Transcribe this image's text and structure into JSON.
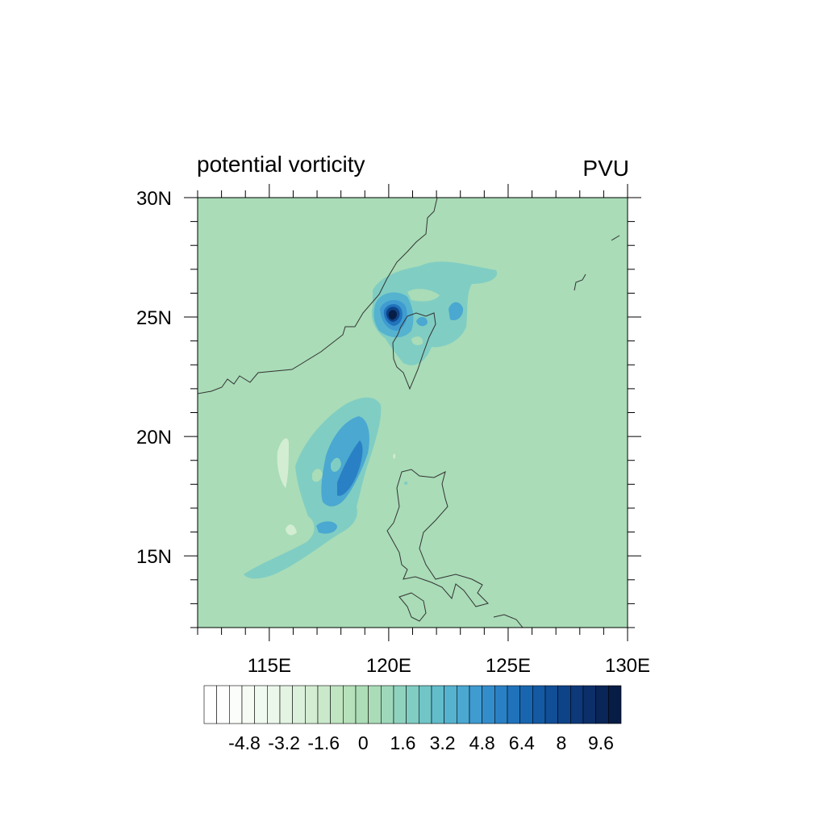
{
  "map": {
    "title_left": "potential vorticity",
    "title_right": "PVU",
    "lon_range": [
      112,
      130
    ],
    "lat_range": [
      12,
      30
    ],
    "background_value_color": "#a9dcb7",
    "lon_ticks": [
      {
        "value": 115,
        "label": "115E"
      },
      {
        "value": 120,
        "label": "120E"
      },
      {
        "value": 125,
        "label": "125E"
      },
      {
        "value": 130,
        "label": "130E"
      }
    ],
    "lat_ticks": [
      {
        "value": 30,
        "label": "30N"
      },
      {
        "value": 25,
        "label": "25N"
      },
      {
        "value": 20,
        "label": "20N"
      },
      {
        "value": 15,
        "label": "15N"
      }
    ],
    "colorbar": {
      "colors": [
        "#ffffff",
        "#fdfefd",
        "#fafdf9",
        "#f6fcf4",
        "#f1faf0",
        "#ebf7ea",
        "#e4f4e3",
        "#dcf1db",
        "#d3edd2",
        "#cae9ca",
        "#c0e5c1",
        "#b6e1ba",
        "#acddb7",
        "#a9dcb7",
        "#9ed8bb",
        "#8fd3bf",
        "#80cdc3",
        "#71c5c7",
        "#62bdcb",
        "#55b3cf",
        "#4aa8d1",
        "#3f9bd0",
        "#348dcb",
        "#2a80c4",
        "#2073bb",
        "#1866b0",
        "#135aa3",
        "#104e96",
        "#0e4388",
        "#0d397a",
        "#0c2f6a",
        "#0a2557",
        "#081d45"
      ],
      "labels": [
        "-4.8",
        "-3.2",
        "-1.6",
        "0",
        "1.6",
        "3.2",
        "4.8",
        "6.4",
        "8",
        "9.6"
      ]
    }
  },
  "chart_data": {
    "type": "heatmap",
    "title": "potential vorticity",
    "units": "PVU",
    "x_axis": {
      "name": "longitude",
      "range": [
        112,
        130
      ],
      "ticks": [
        "115E",
        "120E",
        "125E",
        "130E"
      ]
    },
    "y_axis": {
      "name": "latitude",
      "range": [
        12,
        30
      ],
      "ticks": [
        "15N",
        "20N",
        "25N",
        "30N"
      ]
    },
    "levels": [
      -4.8,
      -3.2,
      -1.6,
      0,
      1.6,
      3.2,
      4.8,
      6.4,
      8,
      9.6
    ],
    "features": [
      {
        "lon": 120.2,
        "lat": 25.1,
        "value": 10.0
      },
      {
        "lon": 122.6,
        "lat": 25.2,
        "value": 3.2
      },
      {
        "lon": 118.5,
        "lat": 18.6,
        "value": 5.0
      },
      {
        "lon": 117.5,
        "lat": 16.6,
        "value": 3.5
      },
      {
        "lon": 115.4,
        "lat": 19.2,
        "value": -0.8
      }
    ],
    "background_value": 0
  }
}
